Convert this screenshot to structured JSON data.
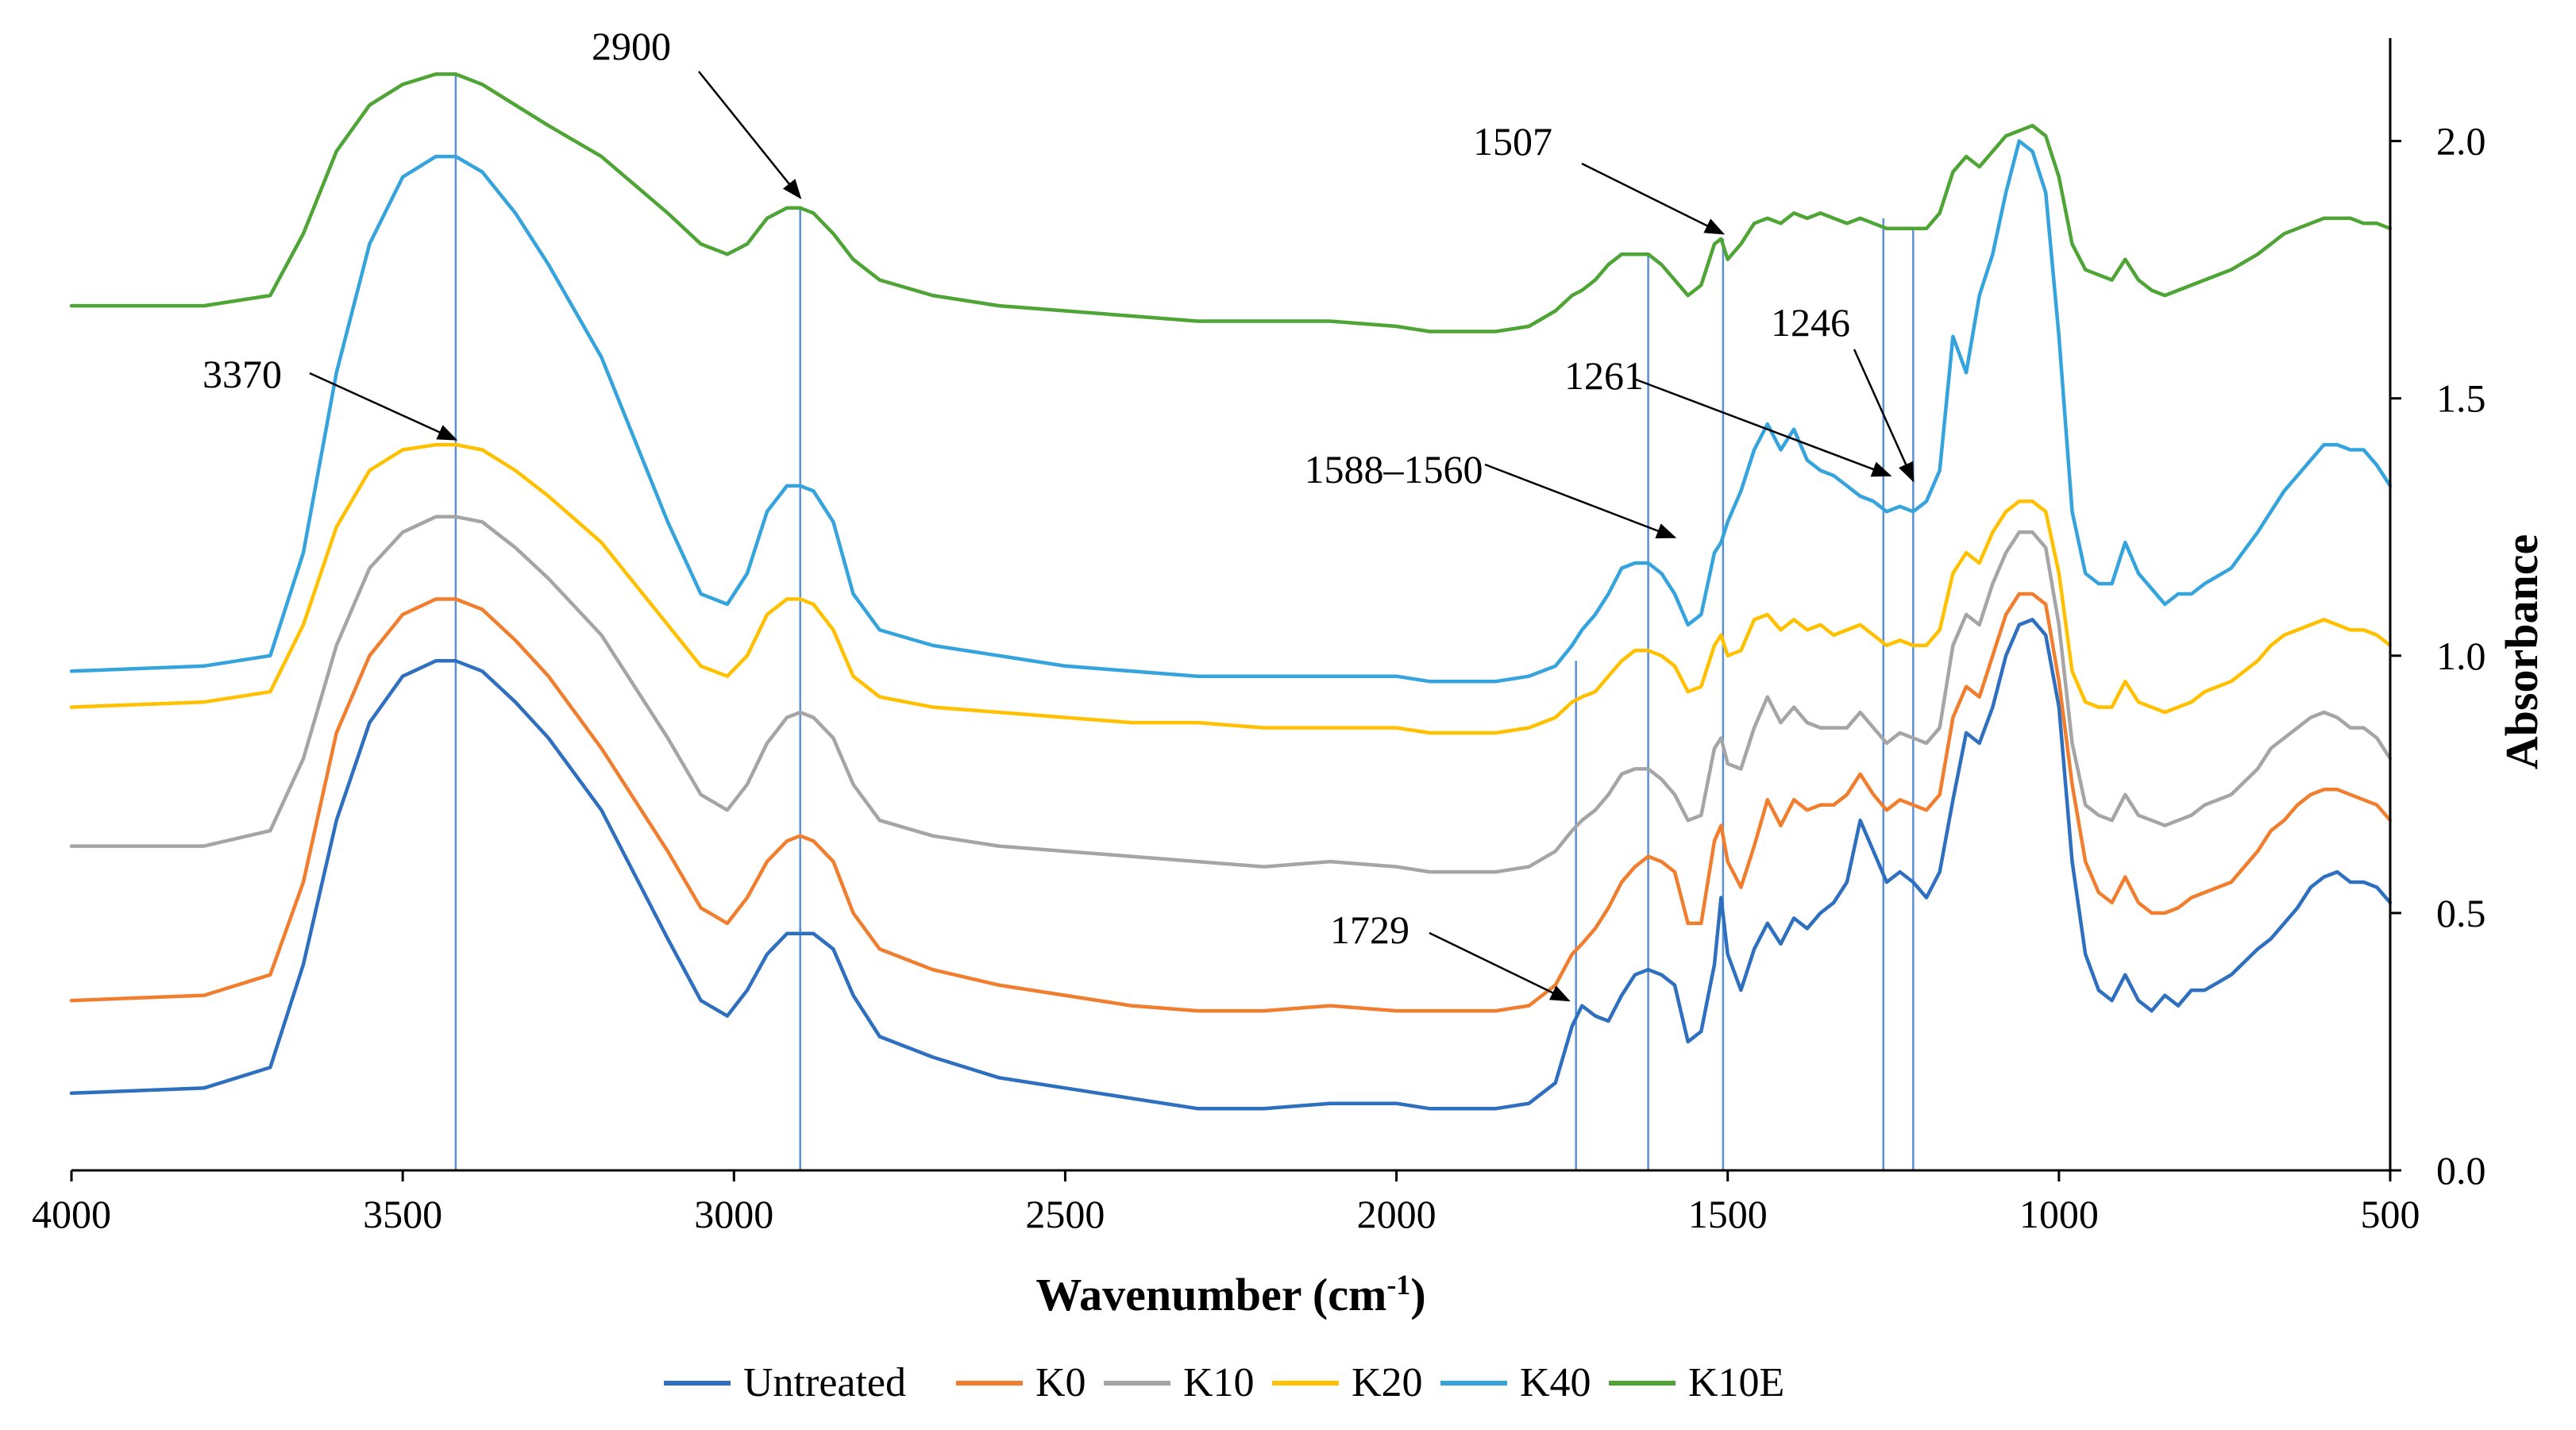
{
  "chart_data": {
    "type": "line",
    "title": "",
    "xlabel": "Wavenumber (cm",
    "xlabel_sup": "-1",
    "xlabel_close": ")",
    "ylabel": "Absorbance",
    "xlim": [
      4000,
      500
    ],
    "ylim": [
      0,
      2.2
    ],
    "x_ticks": [
      4000,
      3500,
      3000,
      2500,
      2000,
      1500,
      1000,
      500
    ],
    "y_ticks": [
      0.0,
      0.5,
      1.0,
      1.5,
      2.0
    ],
    "y_tick_labels": [
      "0.0",
      "0.5",
      "1.0",
      "1.5",
      "2.0"
    ],
    "x_tick_labels": [
      "4000",
      "3500",
      "3000",
      "2500",
      "2000",
      "1500",
      "1000",
      "500"
    ],
    "grid": false,
    "legend_position": "bottom",
    "x": [
      4000,
      3800,
      3700,
      3650,
      3600,
      3550,
      3500,
      3450,
      3420,
      3380,
      3330,
      3280,
      3200,
      3100,
      3050,
      3010,
      2980,
      2950,
      2920,
      2900,
      2880,
      2850,
      2820,
      2780,
      2700,
      2600,
      2500,
      2400,
      2300,
      2200,
      2100,
      2000,
      1950,
      1900,
      1850,
      1800,
      1760,
      1735,
      1720,
      1700,
      1680,
      1660,
      1640,
      1620,
      1600,
      1580,
      1560,
      1540,
      1520,
      1510,
      1500,
      1480,
      1460,
      1440,
      1420,
      1400,
      1380,
      1360,
      1340,
      1320,
      1300,
      1280,
      1260,
      1240,
      1220,
      1200,
      1180,
      1160,
      1140,
      1120,
      1100,
      1080,
      1060,
      1040,
      1020,
      1000,
      980,
      960,
      940,
      920,
      900,
      880,
      860,
      840,
      820,
      800,
      780,
      740,
      700,
      680,
      660,
      640,
      620,
      600,
      580,
      560,
      540,
      520,
      500
    ],
    "series": [
      {
        "name": "Untreated",
        "color": "#2E6FC0",
        "values": [
          0.15,
          0.16,
          0.2,
          0.4,
          0.68,
          0.87,
          0.96,
          0.99,
          0.99,
          0.97,
          0.91,
          0.84,
          0.7,
          0.45,
          0.33,
          0.3,
          0.35,
          0.42,
          0.46,
          0.46,
          0.46,
          0.43,
          0.34,
          0.26,
          0.22,
          0.18,
          0.16,
          0.14,
          0.12,
          0.12,
          0.13,
          0.13,
          0.12,
          0.12,
          0.12,
          0.13,
          0.17,
          0.28,
          0.32,
          0.3,
          0.29,
          0.34,
          0.38,
          0.39,
          0.38,
          0.36,
          0.25,
          0.27,
          0.4,
          0.53,
          0.42,
          0.35,
          0.43,
          0.48,
          0.44,
          0.49,
          0.47,
          0.5,
          0.52,
          0.56,
          0.68,
          0.62,
          0.56,
          0.58,
          0.56,
          0.53,
          0.58,
          0.72,
          0.85,
          0.83,
          0.9,
          1.0,
          1.06,
          1.07,
          1.04,
          0.9,
          0.6,
          0.42,
          0.35,
          0.33,
          0.38,
          0.33,
          0.31,
          0.34,
          0.32,
          0.35,
          0.35,
          0.38,
          0.43,
          0.45,
          0.48,
          0.51,
          0.55,
          0.57,
          0.58,
          0.56,
          0.56,
          0.55,
          0.52
        ]
      },
      {
        "name": "K0",
        "color": "#F07E2E",
        "values": [
          0.33,
          0.34,
          0.38,
          0.56,
          0.85,
          1.0,
          1.08,
          1.11,
          1.11,
          1.09,
          1.03,
          0.96,
          0.82,
          0.62,
          0.51,
          0.48,
          0.53,
          0.6,
          0.64,
          0.65,
          0.64,
          0.6,
          0.5,
          0.43,
          0.39,
          0.36,
          0.34,
          0.32,
          0.31,
          0.31,
          0.32,
          0.31,
          0.31,
          0.31,
          0.31,
          0.32,
          0.36,
          0.42,
          0.44,
          0.47,
          0.51,
          0.56,
          0.59,
          0.61,
          0.6,
          0.58,
          0.48,
          0.48,
          0.64,
          0.67,
          0.6,
          0.55,
          0.63,
          0.72,
          0.67,
          0.72,
          0.7,
          0.71,
          0.71,
          0.73,
          0.77,
          0.73,
          0.7,
          0.72,
          0.71,
          0.7,
          0.73,
          0.88,
          0.94,
          0.92,
          1.0,
          1.08,
          1.12,
          1.12,
          1.1,
          0.95,
          0.75,
          0.6,
          0.54,
          0.52,
          0.57,
          0.52,
          0.5,
          0.5,
          0.51,
          0.53,
          0.54,
          0.56,
          0.62,
          0.66,
          0.68,
          0.71,
          0.73,
          0.74,
          0.74,
          0.73,
          0.72,
          0.71,
          0.68
        ]
      },
      {
        "name": "K10",
        "color": "#A5A5A5",
        "values": [
          0.63,
          0.63,
          0.66,
          0.8,
          1.02,
          1.17,
          1.24,
          1.27,
          1.27,
          1.26,
          1.21,
          1.15,
          1.04,
          0.84,
          0.73,
          0.7,
          0.75,
          0.83,
          0.88,
          0.89,
          0.88,
          0.84,
          0.75,
          0.68,
          0.65,
          0.63,
          0.62,
          0.61,
          0.6,
          0.59,
          0.6,
          0.59,
          0.58,
          0.58,
          0.58,
          0.59,
          0.62,
          0.66,
          0.68,
          0.7,
          0.73,
          0.77,
          0.78,
          0.78,
          0.76,
          0.73,
          0.68,
          0.69,
          0.82,
          0.84,
          0.79,
          0.78,
          0.86,
          0.92,
          0.87,
          0.9,
          0.87,
          0.86,
          0.86,
          0.86,
          0.89,
          0.86,
          0.83,
          0.85,
          0.84,
          0.83,
          0.86,
          1.02,
          1.08,
          1.06,
          1.14,
          1.2,
          1.24,
          1.24,
          1.21,
          1.06,
          0.83,
          0.71,
          0.69,
          0.68,
          0.73,
          0.69,
          0.68,
          0.67,
          0.68,
          0.69,
          0.71,
          0.73,
          0.78,
          0.82,
          0.84,
          0.86,
          0.88,
          0.89,
          0.88,
          0.86,
          0.86,
          0.84,
          0.8
        ]
      },
      {
        "name": "K20",
        "color": "#FFC000",
        "values": [
          0.9,
          0.91,
          0.93,
          1.06,
          1.25,
          1.36,
          1.4,
          1.41,
          1.41,
          1.4,
          1.36,
          1.31,
          1.22,
          1.06,
          0.98,
          0.96,
          1.0,
          1.08,
          1.11,
          1.11,
          1.1,
          1.05,
          0.96,
          0.92,
          0.9,
          0.89,
          0.88,
          0.87,
          0.87,
          0.86,
          0.86,
          0.86,
          0.85,
          0.85,
          0.85,
          0.86,
          0.88,
          0.91,
          0.92,
          0.93,
          0.96,
          0.99,
          1.01,
          1.01,
          1.0,
          0.98,
          0.93,
          0.94,
          1.02,
          1.04,
          1.0,
          1.01,
          1.07,
          1.08,
          1.05,
          1.07,
          1.05,
          1.06,
          1.04,
          1.05,
          1.06,
          1.04,
          1.02,
          1.03,
          1.02,
          1.02,
          1.05,
          1.16,
          1.2,
          1.18,
          1.24,
          1.28,
          1.3,
          1.3,
          1.28,
          1.16,
          0.97,
          0.91,
          0.9,
          0.9,
          0.95,
          0.91,
          0.9,
          0.89,
          0.9,
          0.91,
          0.93,
          0.95,
          0.99,
          1.02,
          1.04,
          1.05,
          1.06,
          1.07,
          1.06,
          1.05,
          1.05,
          1.04,
          1.02
        ]
      },
      {
        "name": "K40",
        "color": "#35A3DC",
        "values": [
          0.97,
          0.98,
          1.0,
          1.2,
          1.55,
          1.8,
          1.93,
          1.97,
          1.97,
          1.94,
          1.86,
          1.76,
          1.58,
          1.26,
          1.12,
          1.1,
          1.16,
          1.28,
          1.33,
          1.33,
          1.32,
          1.26,
          1.12,
          1.05,
          1.02,
          1.0,
          0.98,
          0.97,
          0.96,
          0.96,
          0.96,
          0.96,
          0.95,
          0.95,
          0.95,
          0.96,
          0.98,
          1.02,
          1.05,
          1.08,
          1.12,
          1.17,
          1.18,
          1.18,
          1.16,
          1.12,
          1.06,
          1.08,
          1.2,
          1.22,
          1.26,
          1.32,
          1.4,
          1.45,
          1.4,
          1.44,
          1.38,
          1.36,
          1.35,
          1.33,
          1.31,
          1.3,
          1.28,
          1.29,
          1.28,
          1.3,
          1.36,
          1.62,
          1.55,
          1.7,
          1.78,
          1.9,
          2.0,
          1.98,
          1.9,
          1.62,
          1.28,
          1.16,
          1.14,
          1.14,
          1.22,
          1.16,
          1.13,
          1.1,
          1.12,
          1.12,
          1.14,
          1.17,
          1.24,
          1.28,
          1.32,
          1.35,
          1.38,
          1.41,
          1.41,
          1.4,
          1.4,
          1.37,
          1.33
        ]
      },
      {
        "name": "K10E",
        "color": "#4EA535",
        "values": [
          1.68,
          1.68,
          1.7,
          1.82,
          1.98,
          2.07,
          2.11,
          2.13,
          2.13,
          2.11,
          2.07,
          2.03,
          1.97,
          1.86,
          1.8,
          1.78,
          1.8,
          1.85,
          1.87,
          1.87,
          1.86,
          1.82,
          1.77,
          1.73,
          1.7,
          1.68,
          1.67,
          1.66,
          1.65,
          1.65,
          1.65,
          1.64,
          1.63,
          1.63,
          1.63,
          1.64,
          1.67,
          1.7,
          1.71,
          1.73,
          1.76,
          1.78,
          1.78,
          1.78,
          1.76,
          1.73,
          1.7,
          1.72,
          1.8,
          1.81,
          1.77,
          1.8,
          1.84,
          1.85,
          1.84,
          1.86,
          1.85,
          1.86,
          1.85,
          1.84,
          1.85,
          1.84,
          1.83,
          1.83,
          1.83,
          1.83,
          1.86,
          1.94,
          1.97,
          1.95,
          1.98,
          2.01,
          2.02,
          2.03,
          2.01,
          1.93,
          1.8,
          1.75,
          1.74,
          1.73,
          1.77,
          1.73,
          1.71,
          1.7,
          1.71,
          1.72,
          1.73,
          1.75,
          1.78,
          1.8,
          1.82,
          1.83,
          1.84,
          1.85,
          1.85,
          1.85,
          1.84,
          1.84,
          1.83
        ]
      }
    ],
    "reference_lines": [
      {
        "x": 3420,
        "from": 0.0,
        "to": 2.13
      },
      {
        "x": 2900,
        "from": 0.0,
        "to": 1.87
      },
      {
        "x": 1729,
        "from": 0.0,
        "to": 0.99
      },
      {
        "x": 1620,
        "from": 0.0,
        "to": 1.78
      },
      {
        "x": 1507,
        "from": 0.0,
        "to": 1.81
      },
      {
        "x": 1265,
        "from": 0.0,
        "to": 1.85
      },
      {
        "x": 1220,
        "from": 0.0,
        "to": 1.83
      }
    ],
    "annotations": [
      {
        "label": "2900",
        "target": [
          2900,
          1.89
        ]
      },
      {
        "label": "1507",
        "target": [
          1507,
          1.82
        ]
      },
      {
        "label": "3370",
        "target": [
          3420,
          1.42
        ]
      },
      {
        "label": "1261",
        "target": [
          1255,
          1.35
        ]
      },
      {
        "label": "1246",
        "target": [
          1220,
          1.34
        ]
      },
      {
        "label": "1588–1560",
        "target": [
          1580,
          1.23
        ]
      },
      {
        "label": "1729",
        "target": [
          1740,
          0.33
        ]
      }
    ]
  }
}
